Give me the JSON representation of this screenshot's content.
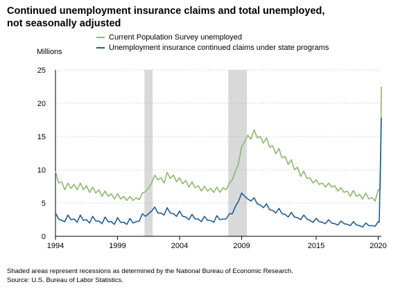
{
  "chart_data": {
    "type": "line",
    "title": "Continued unemployment insurance claims and total unemployed, not seasonally adjusted",
    "ylabel": "Millions",
    "xlim": [
      1994,
      2020.25
    ],
    "ylim": [
      0,
      25
    ],
    "y_ticks": [
      0,
      5,
      10,
      15,
      20,
      25
    ],
    "x_ticks": [
      1994,
      1999,
      2004,
      2009,
      2015,
      2020
    ],
    "grid": "horizontal dotted",
    "legend": "top",
    "recessions": [
      [
        2001.17,
        2001.83
      ],
      [
        2007.92,
        2009.42
      ]
    ],
    "series": [
      {
        "name": "Current Population Survey unemployed",
        "color": "#8db86b",
        "x": [
          1994.0,
          1994.25,
          1994.5,
          1994.75,
          1995.0,
          1995.25,
          1995.5,
          1995.75,
          1996.0,
          1996.25,
          1996.5,
          1996.75,
          1997.0,
          1997.25,
          1997.5,
          1997.75,
          1998.0,
          1998.25,
          1998.5,
          1998.75,
          1999.0,
          1999.25,
          1999.5,
          1999.75,
          2000.0,
          2000.25,
          2000.5,
          2000.75,
          2001.0,
          2001.25,
          2001.5,
          2001.75,
          2002.0,
          2002.25,
          2002.5,
          2002.75,
          2003.0,
          2003.25,
          2003.5,
          2003.75,
          2004.0,
          2004.25,
          2004.5,
          2004.75,
          2005.0,
          2005.25,
          2005.5,
          2005.75,
          2006.0,
          2006.25,
          2006.5,
          2006.75,
          2007.0,
          2007.25,
          2007.5,
          2007.75,
          2008.0,
          2008.25,
          2008.5,
          2008.75,
          2009.0,
          2009.25,
          2009.5,
          2009.75,
          2010.0,
          2010.25,
          2010.5,
          2010.75,
          2011.0,
          2011.25,
          2011.5,
          2011.75,
          2012.0,
          2012.25,
          2012.5,
          2012.75,
          2013.0,
          2013.25,
          2013.5,
          2013.75,
          2014.0,
          2014.25,
          2014.5,
          2014.75,
          2015.0,
          2015.25,
          2015.5,
          2015.75,
          2016.0,
          2016.25,
          2016.5,
          2016.75,
          2017.0,
          2017.25,
          2017.5,
          2017.75,
          2018.0,
          2018.25,
          2018.5,
          2018.75,
          2019.0,
          2019.25,
          2019.5,
          2019.75,
          2020.0,
          2020.08,
          2020.17,
          2020.25
        ],
        "values": [
          9.8,
          8.0,
          8.2,
          7.0,
          8.0,
          7.2,
          7.8,
          7.0,
          8.0,
          7.0,
          7.6,
          6.6,
          7.4,
          6.5,
          7.0,
          6.0,
          6.8,
          6.0,
          6.4,
          5.6,
          6.4,
          5.6,
          6.0,
          5.4,
          6.0,
          5.4,
          5.8,
          5.5,
          6.5,
          6.7,
          7.3,
          8.0,
          9.2,
          8.5,
          8.8,
          8.0,
          9.6,
          8.7,
          9.2,
          8.2,
          8.8,
          7.9,
          8.4,
          7.4,
          8.2,
          7.3,
          7.6,
          6.8,
          7.5,
          6.8,
          7.2,
          6.6,
          7.4,
          6.6,
          7.3,
          7.0,
          8.0,
          8.5,
          9.8,
          11.0,
          13.5,
          14.2,
          15.2,
          14.6,
          16.0,
          14.8,
          15.0,
          14.0,
          14.8,
          13.4,
          13.6,
          12.4,
          13.2,
          11.8,
          12.0,
          10.8,
          11.5,
          10.0,
          10.4,
          9.0,
          9.8,
          8.7,
          8.8,
          8.0,
          8.5,
          7.8,
          8.0,
          7.4,
          8.0,
          7.4,
          7.6,
          6.8,
          7.3,
          6.6,
          6.8,
          6.0,
          6.9,
          6.0,
          6.3,
          5.6,
          6.5,
          5.6,
          5.8,
          5.3,
          7.0,
          7.0,
          7.1,
          22.5
        ]
      },
      {
        "name": "Unemployment insurance continued claims under state programs",
        "color": "#1f5a96",
        "x": [
          1994.0,
          1994.25,
          1994.5,
          1994.75,
          1995.0,
          1995.25,
          1995.5,
          1995.75,
          1996.0,
          1996.25,
          1996.5,
          1996.75,
          1997.0,
          1997.25,
          1997.5,
          1997.75,
          1998.0,
          1998.25,
          1998.5,
          1998.75,
          1999.0,
          1999.25,
          1999.5,
          1999.75,
          2000.0,
          2000.25,
          2000.5,
          2000.75,
          2001.0,
          2001.25,
          2001.5,
          2001.75,
          2002.0,
          2002.25,
          2002.5,
          2002.75,
          2003.0,
          2003.25,
          2003.5,
          2003.75,
          2004.0,
          2004.25,
          2004.5,
          2004.75,
          2005.0,
          2005.25,
          2005.5,
          2005.75,
          2006.0,
          2006.25,
          2006.5,
          2006.75,
          2007.0,
          2007.25,
          2007.5,
          2007.75,
          2008.0,
          2008.25,
          2008.5,
          2008.75,
          2009.0,
          2009.25,
          2009.5,
          2009.75,
          2010.0,
          2010.25,
          2010.5,
          2010.75,
          2011.0,
          2011.25,
          2011.5,
          2011.75,
          2012.0,
          2012.25,
          2012.5,
          2012.75,
          2013.0,
          2013.25,
          2013.5,
          2013.75,
          2014.0,
          2014.25,
          2014.5,
          2014.75,
          2015.0,
          2015.25,
          2015.5,
          2015.75,
          2016.0,
          2016.25,
          2016.5,
          2016.75,
          2017.0,
          2017.25,
          2017.5,
          2017.75,
          2018.0,
          2018.25,
          2018.5,
          2018.75,
          2019.0,
          2019.25,
          2019.5,
          2019.75,
          2020.0,
          2020.08,
          2020.17,
          2020.25
        ],
        "values": [
          3.5,
          2.6,
          2.4,
          2.2,
          3.2,
          2.5,
          2.6,
          2.1,
          3.2,
          2.4,
          2.5,
          2.0,
          3.0,
          2.3,
          2.3,
          1.9,
          2.9,
          2.2,
          2.2,
          1.8,
          2.8,
          2.1,
          2.1,
          1.8,
          2.7,
          2.0,
          2.2,
          2.3,
          3.4,
          3.0,
          3.4,
          3.8,
          4.4,
          3.5,
          3.5,
          3.2,
          4.3,
          3.5,
          3.4,
          3.0,
          3.8,
          3.0,
          2.9,
          2.5,
          3.3,
          2.6,
          2.6,
          2.2,
          3.0,
          2.4,
          2.4,
          2.1,
          3.1,
          2.5,
          2.6,
          2.6,
          3.4,
          3.4,
          4.5,
          5.3,
          6.5,
          6.0,
          5.6,
          5.3,
          5.8,
          4.9,
          4.7,
          4.3,
          4.9,
          4.0,
          3.9,
          3.5,
          4.2,
          3.4,
          3.3,
          2.9,
          3.6,
          2.9,
          2.8,
          2.5,
          3.2,
          2.6,
          2.4,
          2.1,
          2.7,
          2.2,
          2.1,
          1.9,
          2.5,
          2.0,
          1.9,
          1.7,
          2.3,
          1.9,
          1.8,
          1.6,
          2.2,
          1.7,
          1.6,
          1.4,
          2.0,
          1.6,
          1.6,
          1.5,
          2.2,
          2.1,
          10.5,
          17.8
        ]
      }
    ],
    "footnotes": [
      "Shaded areas represent recessions as determined by the National Bureau of Economic Research.",
      "Source: U.S. Bureau of Labor Statistics."
    ]
  }
}
